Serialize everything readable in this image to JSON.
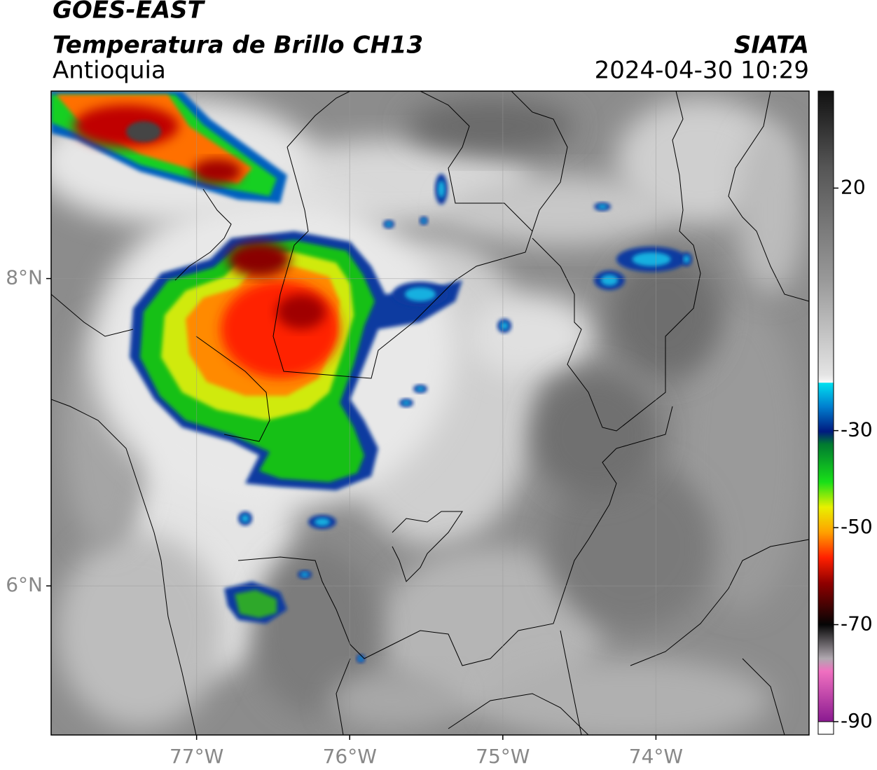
{
  "header": {
    "satellite": "GOES-EAST",
    "product": "Temperatura de Brillo CH13",
    "region": "Antioquia",
    "source": "SIATA",
    "datetime": "2024-04-30 10:29"
  },
  "map": {
    "xlim": [
      -77.95,
      -73.0
    ],
    "ylim": [
      5.03,
      9.22
    ],
    "xticks": [
      {
        "value": -77,
        "label": "77°W"
      },
      {
        "value": -76,
        "label": "76°W"
      },
      {
        "value": -75,
        "label": "75°W"
      },
      {
        "value": -74,
        "label": "74°W"
      }
    ],
    "yticks": [
      {
        "value": 8,
        "label": "8°N"
      },
      {
        "value": 6,
        "label": "6°N"
      }
    ],
    "grid": true
  },
  "colorbar": {
    "lim": [
      -90,
      40
    ],
    "ticks": [
      20,
      -30,
      -50,
      -70,
      -90
    ]
  }
}
